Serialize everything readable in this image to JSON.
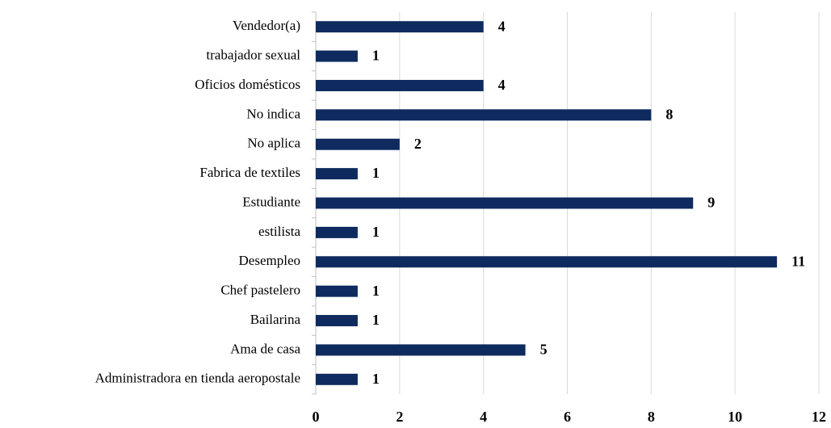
{
  "chart_data": {
    "type": "barh",
    "categories": [
      "Vendedor(a)",
      "trabajador sexual",
      "Oficios domésticos",
      "No indica",
      "No aplica",
      "Fabrica de textiles",
      "Estudiante",
      "estilista",
      "Desempleo",
      "Chef pastelero",
      "Bailarina",
      "Ama de casa",
      "Administradora en tienda aeropostale"
    ],
    "values": [
      4,
      1,
      4,
      8,
      2,
      1,
      9,
      1,
      11,
      1,
      1,
      5,
      1
    ],
    "color": "#0e2a5f",
    "xlim": [
      0,
      12
    ],
    "xticks": [
      0,
      2,
      4,
      6,
      8,
      10,
      12
    ],
    "grid": true
  }
}
